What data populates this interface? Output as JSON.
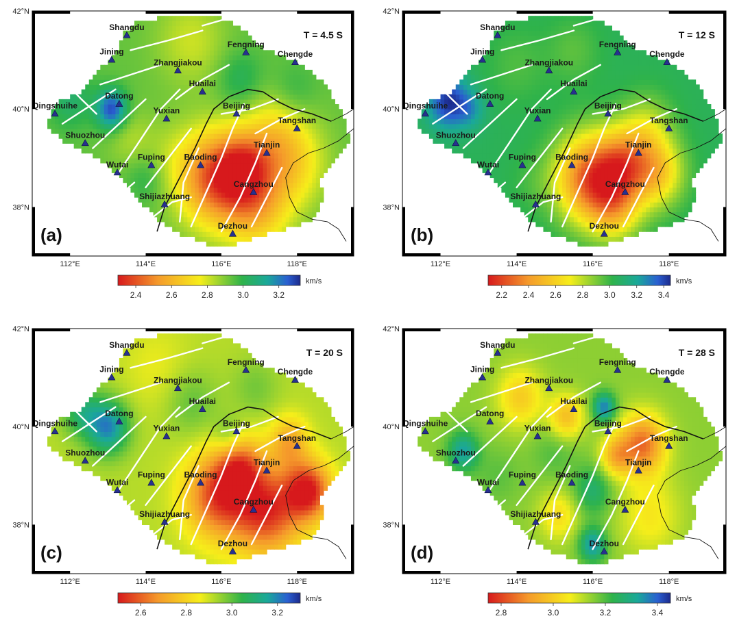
{
  "figure": {
    "lat_labels": [
      "42°N",
      "40°N",
      "38°N"
    ],
    "lon_labels": [
      "112°E",
      "114°E",
      "116°E",
      "118°E"
    ],
    "lat_values": [
      42,
      40,
      38
    ],
    "lon_values": [
      112,
      114,
      116,
      118
    ],
    "extent": {
      "lon": [
        111,
        119.5
      ],
      "lat": [
        37,
        42
      ]
    },
    "unit": "km/s",
    "colors": {
      "low": "#d7191c",
      "orange": "#f59a2b",
      "yellow": "#f6ee1a",
      "green": "#2fb34a",
      "teal": "#1aa89a",
      "blue": "#2a5fd1",
      "navy": "#1c2a8c",
      "fault": "#ffffff",
      "marker": "#27308f"
    }
  },
  "stations": [
    {
      "name": "Shangdu",
      "lon": 113.5,
      "lat": 41.5
    },
    {
      "name": "Jining",
      "lon": 113.1,
      "lat": 41.0
    },
    {
      "name": "Zhangjiakou",
      "lon": 114.85,
      "lat": 40.78
    },
    {
      "name": "Fengning",
      "lon": 116.65,
      "lat": 41.15
    },
    {
      "name": "Chengde",
      "lon": 117.95,
      "lat": 40.95
    },
    {
      "name": "Huailai",
      "lon": 115.5,
      "lat": 40.35
    },
    {
      "name": "Datong",
      "lon": 113.3,
      "lat": 40.1
    },
    {
      "name": "Qingshuihe",
      "lon": 111.6,
      "lat": 39.9
    },
    {
      "name": "Beijing",
      "lon": 116.4,
      "lat": 39.9
    },
    {
      "name": "Yuxian",
      "lon": 114.55,
      "lat": 39.8
    },
    {
      "name": "Tangshan",
      "lon": 118.0,
      "lat": 39.6
    },
    {
      "name": "Shuozhou",
      "lon": 112.4,
      "lat": 39.3
    },
    {
      "name": "Tianjin",
      "lon": 117.2,
      "lat": 39.1
    },
    {
      "name": "Fuping",
      "lon": 114.15,
      "lat": 38.85
    },
    {
      "name": "Baoding",
      "lon": 115.45,
      "lat": 38.85
    },
    {
      "name": "Wutai",
      "lon": 113.25,
      "lat": 38.7
    },
    {
      "name": "Cangzhou",
      "lon": 116.85,
      "lat": 38.3
    },
    {
      "name": "Shijiazhuang",
      "lon": 114.5,
      "lat": 38.05
    },
    {
      "name": "Dezhou",
      "lon": 116.3,
      "lat": 37.45
    }
  ],
  "panels": [
    {
      "id": "a",
      "label": "(a)",
      "period": "T = 4.5 S",
      "colorbar": {
        "ticks": [
          "2.4",
          "2.6",
          "2.8",
          "3.0",
          "3.2"
        ],
        "tick_values": [
          2.4,
          2.6,
          2.8,
          3.0,
          3.2
        ],
        "range": [
          2.3,
          3.32
        ]
      },
      "field": {
        "base": 2.93,
        "anomalies": [
          {
            "lon": 115.8,
            "lat": 38.6,
            "r": 0.95,
            "dv": -0.5
          },
          {
            "lon": 116.6,
            "lat": 38.85,
            "r": 0.7,
            "dv": -0.35
          },
          {
            "lon": 116.9,
            "lat": 38.0,
            "r": 0.85,
            "dv": -0.3
          },
          {
            "lon": 117.8,
            "lat": 38.9,
            "r": 0.9,
            "dv": -0.25
          },
          {
            "lon": 117.4,
            "lat": 39.6,
            "r": 0.8,
            "dv": -0.15
          },
          {
            "lon": 113.1,
            "lat": 40.0,
            "r": 0.4,
            "dv": 0.35
          },
          {
            "lon": 112.0,
            "lat": 40.2,
            "r": 0.6,
            "dv": 0.12
          },
          {
            "lon": 113.6,
            "lat": 39.4,
            "r": 0.6,
            "dv": -0.08
          },
          {
            "lon": 114.6,
            "lat": 39.1,
            "r": 0.7,
            "dv": -0.05
          },
          {
            "lon": 115.2,
            "lat": 41.4,
            "r": 0.9,
            "dv": -0.12
          },
          {
            "lon": 117.9,
            "lat": 40.3,
            "r": 0.6,
            "dv": 0.08
          },
          {
            "lon": 116.5,
            "lat": 40.6,
            "r": 0.6,
            "dv": 0.1
          },
          {
            "lon": 114.0,
            "lat": 38.6,
            "r": 0.5,
            "dv": 0.08
          }
        ]
      }
    },
    {
      "id": "b",
      "label": "(b)",
      "period": "T = 12 S",
      "colorbar": {
        "ticks": [
          "2.2",
          "2.4",
          "2.6",
          "2.8",
          "3.0",
          "3.2",
          "3.4"
        ],
        "tick_values": [
          2.2,
          2.4,
          2.6,
          2.8,
          3.0,
          3.2,
          3.4
        ],
        "range": [
          2.1,
          3.45
        ]
      },
      "field": {
        "base": 3.05,
        "anomalies": [
          {
            "lon": 115.9,
            "lat": 38.6,
            "r": 0.9,
            "dv": -0.75
          },
          {
            "lon": 116.8,
            "lat": 38.9,
            "r": 0.7,
            "dv": -0.5
          },
          {
            "lon": 117.7,
            "lat": 38.7,
            "r": 0.7,
            "dv": -0.45
          },
          {
            "lon": 116.6,
            "lat": 38.0,
            "r": 0.7,
            "dv": -0.4
          },
          {
            "lon": 117.4,
            "lat": 39.6,
            "r": 0.7,
            "dv": -0.25
          },
          {
            "lon": 112.2,
            "lat": 40.15,
            "r": 0.55,
            "dv": 0.38
          },
          {
            "lon": 112.8,
            "lat": 40.0,
            "r": 0.4,
            "dv": 0.15
          },
          {
            "lon": 114.0,
            "lat": 40.9,
            "r": 0.8,
            "dv": -0.08
          },
          {
            "lon": 115.5,
            "lat": 41.2,
            "r": 0.7,
            "dv": -0.1
          },
          {
            "lon": 114.4,
            "lat": 38.5,
            "r": 0.6,
            "dv": -0.05
          }
        ]
      }
    },
    {
      "id": "c",
      "label": "(c)",
      "period": "T = 20 S",
      "colorbar": {
        "ticks": [
          "2.6",
          "2.8",
          "3.0",
          "3.2"
        ],
        "tick_values": [
          2.6,
          2.8,
          3.0,
          3.2
        ],
        "range": [
          2.5,
          3.3
        ]
      },
      "field": {
        "base": 2.92,
        "anomalies": [
          {
            "lon": 115.9,
            "lat": 38.6,
            "r": 0.85,
            "dv": -0.35
          },
          {
            "lon": 117.2,
            "lat": 38.3,
            "r": 0.9,
            "dv": -0.38
          },
          {
            "lon": 118.3,
            "lat": 38.7,
            "r": 0.6,
            "dv": -0.4
          },
          {
            "lon": 116.5,
            "lat": 39.2,
            "r": 0.6,
            "dv": -0.25
          },
          {
            "lon": 117.8,
            "lat": 39.7,
            "r": 0.5,
            "dv": -0.2
          },
          {
            "lon": 113.0,
            "lat": 40.0,
            "r": 0.55,
            "dv": 0.28
          },
          {
            "lon": 112.3,
            "lat": 40.3,
            "r": 0.5,
            "dv": 0.15
          },
          {
            "lon": 115.2,
            "lat": 40.5,
            "r": 0.7,
            "dv": 0.08
          },
          {
            "lon": 116.2,
            "lat": 39.8,
            "r": 0.4,
            "dv": 0.1
          },
          {
            "lon": 114.3,
            "lat": 41.2,
            "r": 0.9,
            "dv": -0.05
          },
          {
            "lon": 116.9,
            "lat": 40.8,
            "r": 0.6,
            "dv": 0.06
          }
        ]
      }
    },
    {
      "id": "d",
      "label": "(d)",
      "period": "T = 28 S",
      "colorbar": {
        "ticks": [
          "2.8",
          "3.0",
          "3.2",
          "3.4"
        ],
        "tick_values": [
          2.8,
          3.0,
          3.2,
          3.4
        ],
        "range": [
          2.75,
          3.45
        ]
      },
      "field": {
        "base": 3.15,
        "anomalies": [
          {
            "lon": 117.3,
            "lat": 39.65,
            "r": 0.6,
            "dv": -0.3
          },
          {
            "lon": 116.6,
            "lat": 39.4,
            "r": 0.4,
            "dv": -0.18
          },
          {
            "lon": 115.3,
            "lat": 40.2,
            "r": 0.45,
            "dv": -0.18
          },
          {
            "lon": 114.1,
            "lat": 40.6,
            "r": 0.6,
            "dv": -0.15
          },
          {
            "lon": 115.1,
            "lat": 38.2,
            "r": 0.5,
            "dv": -0.12
          },
          {
            "lon": 117.5,
            "lat": 38.2,
            "r": 0.8,
            "dv": -0.1
          },
          {
            "lon": 112.6,
            "lat": 39.5,
            "r": 0.4,
            "dv": 0.18
          },
          {
            "lon": 116.3,
            "lat": 40.4,
            "r": 0.3,
            "dv": 0.22
          },
          {
            "lon": 116.0,
            "lat": 37.6,
            "r": 0.35,
            "dv": 0.2
          },
          {
            "lon": 116.0,
            "lat": 38.7,
            "r": 0.5,
            "dv": 0.12
          },
          {
            "lon": 115.0,
            "lat": 39.5,
            "r": 0.6,
            "dv": 0.05
          },
          {
            "lon": 113.5,
            "lat": 39.0,
            "r": 0.6,
            "dv": 0.04
          }
        ]
      }
    }
  ],
  "faults": [
    [
      [
        113.2,
        38.6
      ],
      [
        113.8,
        39.3
      ],
      [
        114.4,
        40.0
      ],
      [
        114.9,
        40.4
      ]
    ],
    [
      [
        114.0,
        38.4
      ],
      [
        114.6,
        39.0
      ],
      [
        115.2,
        39.6
      ]
    ],
    [
      [
        112.6,
        39.2
      ],
      [
        113.3,
        39.7
      ],
      [
        114.0,
        40.2
      ]
    ],
    [
      [
        111.8,
        39.7
      ],
      [
        112.6,
        40.1
      ],
      [
        113.2,
        40.4
      ]
    ],
    [
      [
        112.8,
        40.5
      ],
      [
        113.6,
        40.7
      ],
      [
        114.4,
        40.9
      ]
    ],
    [
      [
        113.6,
        41.2
      ],
      [
        114.6,
        41.4
      ],
      [
        115.5,
        41.6
      ]
    ],
    [
      [
        115.5,
        41.7
      ],
      [
        116.4,
        41.9
      ],
      [
        117.0,
        41.95
      ]
    ],
    [
      [
        114.8,
        40.2
      ],
      [
        115.5,
        40.6
      ],
      [
        116.2,
        40.9
      ]
    ],
    [
      [
        115.2,
        37.6
      ],
      [
        115.6,
        38.3
      ],
      [
        116.0,
        39.0
      ],
      [
        116.3,
        39.6
      ],
      [
        116.6,
        40.1
      ]
    ],
    [
      [
        116.0,
        37.5
      ],
      [
        116.5,
        38.2
      ],
      [
        116.9,
        38.9
      ],
      [
        117.2,
        39.5
      ]
    ],
    [
      [
        116.8,
        37.6
      ],
      [
        117.2,
        38.2
      ],
      [
        117.6,
        38.8
      ]
    ],
    [
      [
        114.9,
        37.7
      ],
      [
        115.0,
        38.5
      ],
      [
        115.4,
        39.2
      ]
    ],
    [
      [
        116.9,
        39.5
      ],
      [
        117.6,
        39.8
      ],
      [
        118.2,
        40.0
      ]
    ],
    [
      [
        114.2,
        37.8
      ],
      [
        114.7,
        38.1
      ],
      [
        115.2,
        38.2
      ]
    ],
    [
      [
        116.0,
        39.9
      ],
      [
        116.8,
        40.0
      ],
      [
        117.5,
        40.2
      ]
    ],
    [
      [
        111.8,
        40.6
      ],
      [
        112.3,
        40.2
      ],
      [
        112.7,
        39.9
      ]
    ],
    [
      [
        113.0,
        37.9
      ],
      [
        113.4,
        38.3
      ],
      [
        113.7,
        38.5
      ]
    ]
  ],
  "region_outline": [
    [
      112.3,
      40.35
    ],
    [
      112.5,
      40.6
    ],
    [
      112.9,
      40.9
    ],
    [
      113.3,
      41.3
    ],
    [
      113.4,
      41.55
    ],
    [
      113.7,
      41.75
    ],
    [
      114.3,
      41.85
    ],
    [
      114.9,
      41.9
    ],
    [
      115.6,
      41.95
    ],
    [
      116.2,
      41.8
    ],
    [
      116.6,
      41.6
    ],
    [
      117.0,
      41.3
    ],
    [
      117.5,
      41.1
    ],
    [
      118.1,
      40.9
    ],
    [
      118.6,
      40.6
    ],
    [
      118.9,
      40.3
    ],
    [
      119.2,
      39.9
    ],
    [
      119.4,
      39.4
    ],
    [
      119.1,
      39.0
    ],
    [
      118.6,
      38.6
    ],
    [
      118.7,
      38.2
    ],
    [
      118.5,
      37.8
    ],
    [
      118.0,
      37.6
    ],
    [
      117.4,
      37.5
    ],
    [
      116.8,
      37.35
    ],
    [
      116.2,
      37.2
    ],
    [
      115.6,
      37.25
    ],
    [
      114.9,
      37.45
    ],
    [
      114.4,
      37.7
    ],
    [
      114.0,
      38.0
    ],
    [
      113.6,
      38.35
    ],
    [
      113.2,
      38.7
    ],
    [
      112.8,
      38.95
    ],
    [
      112.2,
      39.2
    ],
    [
      111.7,
      39.4
    ],
    [
      111.4,
      39.7
    ],
    [
      111.5,
      40.0
    ],
    [
      111.8,
      40.2
    ]
  ],
  "province_border": [
    [
      114.3,
      37.5
    ],
    [
      114.5,
      38.0
    ],
    [
      114.9,
      38.6
    ],
    [
      115.3,
      39.2
    ],
    [
      115.6,
      39.7
    ],
    [
      115.8,
      40.0
    ],
    [
      116.2,
      40.25
    ],
    [
      116.7,
      40.4
    ],
    [
      117.1,
      40.35
    ],
    [
      117.5,
      40.15
    ],
    [
      117.9,
      40.0
    ],
    [
      118.4,
      39.9
    ],
    [
      118.9,
      39.75
    ]
  ],
  "coastline": [
    [
      118.9,
      39.75
    ],
    [
      119.3,
      39.9
    ],
    [
      119.5,
      40.0
    ],
    [
      119.5,
      39.6
    ],
    [
      119.1,
      39.35
    ],
    [
      118.7,
      39.2
    ],
    [
      118.3,
      39.1
    ],
    [
      117.9,
      38.9
    ],
    [
      117.7,
      38.6
    ],
    [
      117.8,
      38.2
    ],
    [
      118.0,
      37.9
    ],
    [
      118.4,
      37.75
    ],
    [
      118.8,
      37.7
    ],
    [
      119.1,
      37.55
    ],
    [
      119.3,
      37.3
    ]
  ]
}
